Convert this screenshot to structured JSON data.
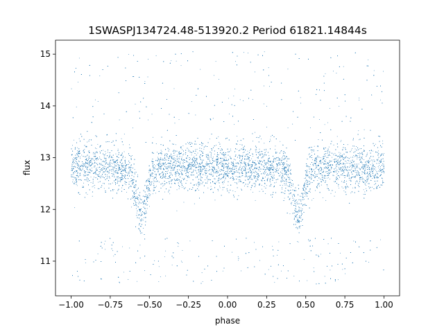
{
  "chart_data": {
    "type": "scatter",
    "title": "1SWASPJ134724.48-513920.2 Period 61821.14844s",
    "xlabel": "phase",
    "ylabel": "flux",
    "xlim": [
      -1.1,
      1.1
    ],
    "ylim": [
      10.33,
      15.27
    ],
    "x_ticks": [
      -1.0,
      -0.75,
      -0.5,
      -0.25,
      0.0,
      0.25,
      0.5,
      0.75,
      1.0
    ],
    "x_tick_labels": [
      "−1.00",
      "−0.75",
      "−0.50",
      "−0.25",
      "0.00",
      "0.25",
      "0.50",
      "0.75",
      "1.00"
    ],
    "y_ticks": [
      11,
      12,
      13,
      14,
      15
    ],
    "y_tick_labels": [
      "11",
      "12",
      "13",
      "14",
      "15"
    ],
    "grid": false,
    "legend": "none",
    "marker_color": "#1f77b4",
    "series": [
      {
        "baseline_flux": 12.8,
        "phase_range": [
          -1.0,
          1.0
        ],
        "eclipse_minima_phase": [
          -0.55,
          0.45
        ],
        "eclipse_minimum_flux": 11.9,
        "approx_point_count": 12000
      }
    ]
  }
}
